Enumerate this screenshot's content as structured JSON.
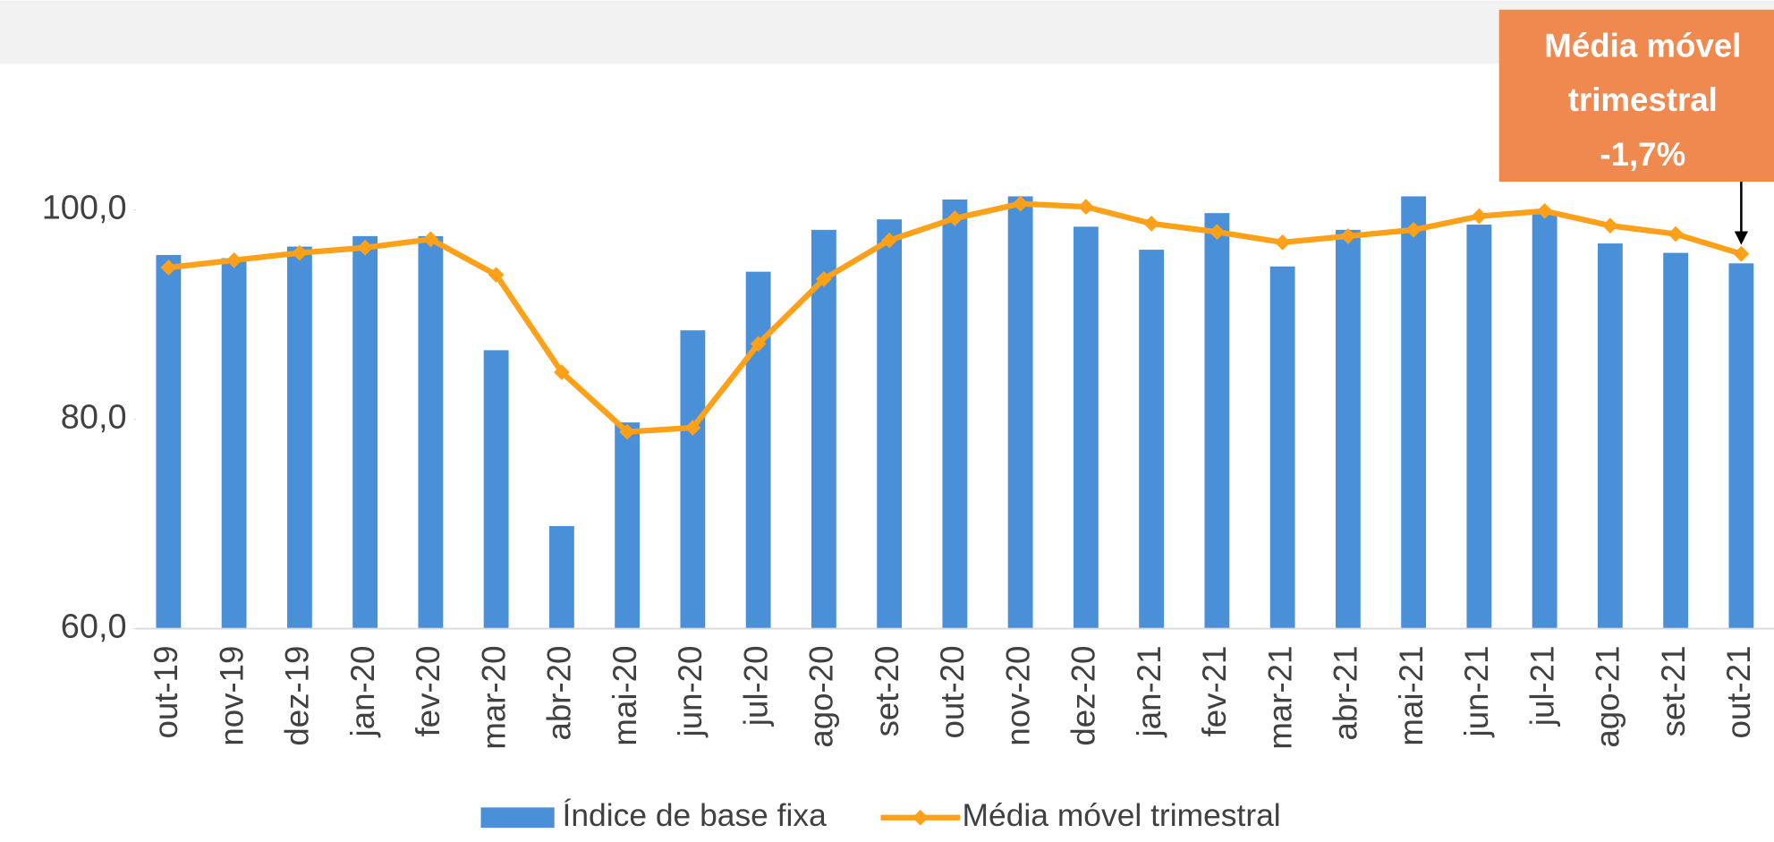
{
  "chart_data": {
    "type": "bar_line",
    "categories": [
      "out-19",
      "nov-19",
      "dez-19",
      "jan-20",
      "fev-20",
      "mar-20",
      "abr-20",
      "mai-20",
      "jun-20",
      "jul-20",
      "ago-20",
      "set-20",
      "out-20",
      "nov-20",
      "dez-20",
      "jan-21",
      "fev-21",
      "mar-21",
      "abr-21",
      "mai-21",
      "jun-21",
      "jul-21",
      "ago-21",
      "set-21",
      "out-21"
    ],
    "series": [
      {
        "name": "Índice de base fixa",
        "type": "bar",
        "color": "#4a90d9",
        "values": [
          95.7,
          95.4,
          96.5,
          97.5,
          97.5,
          86.6,
          69.8,
          79.7,
          88.5,
          94.1,
          98.1,
          99.1,
          101.0,
          101.3,
          98.4,
          96.2,
          99.7,
          94.6,
          98.1,
          101.3,
          98.6,
          99.7,
          96.8,
          95.9,
          94.9
        ]
      },
      {
        "name": "Média móvel trimestral",
        "type": "line",
        "color": "#ffa019",
        "values": [
          94.5,
          95.2,
          95.9,
          96.4,
          97.2,
          93.8,
          84.5,
          78.8,
          79.2,
          87.2,
          93.4,
          97.1,
          99.2,
          100.6,
          100.3,
          98.7,
          97.9,
          96.9,
          97.5,
          98.1,
          99.4,
          99.9,
          98.5,
          97.7,
          95.8
        ]
      }
    ],
    "ylim": [
      60,
      110
    ],
    "yticks": [
      {
        "value": 60,
        "label": "60,0"
      },
      {
        "value": 80,
        "label": "80,0"
      },
      {
        "value": 100,
        "label": "100,0"
      }
    ],
    "grid": false,
    "legend": "bottom",
    "annotation": {
      "lines": [
        "Média móvel",
        "trimestral",
        "-1,7%"
      ],
      "color": "#f0894f"
    }
  }
}
